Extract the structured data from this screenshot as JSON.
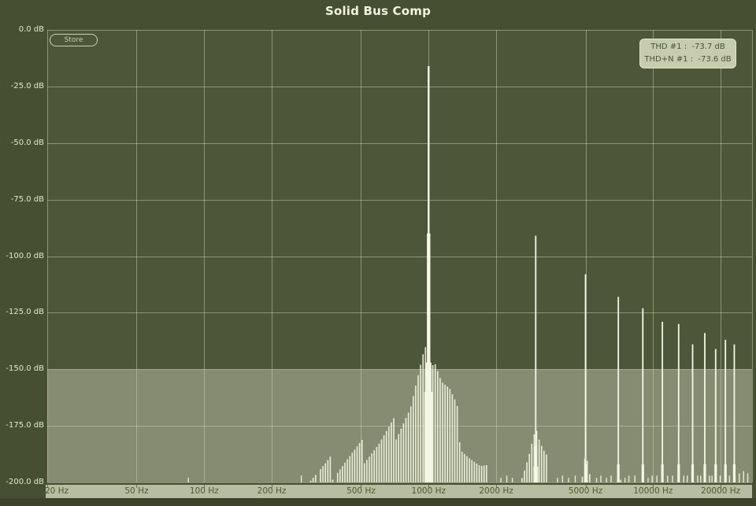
{
  "window": {
    "title": "Solid Bus Comp"
  },
  "controls": {
    "store_button": "Store"
  },
  "readout": {
    "line1": "THD #1 :  -73.7 dB",
    "line2": "THD+N #1 :  -73.6 dB"
  },
  "colors": {
    "background": "#474f33",
    "plot_background": "#4d5639",
    "bottom_band": "#3c432a",
    "grid": "#ccd3ae",
    "spectrum": "#f4f7e3",
    "noise_band_overlay": "#f2f6e2",
    "axis_strip": "#b7bda0",
    "axis_strip_text": "#4f5930",
    "y_label_text": "#e3e8ca",
    "readout_bg": "#c7ccaf",
    "readout_text": "#4a532e",
    "title_text": "#f1f5de"
  },
  "chart_data": {
    "type": "line",
    "subtype": "fft-harmonic-spectrum",
    "title": "Solid Bus Comp",
    "legend": "none",
    "grid": "on",
    "x_axis": {
      "scale": "log",
      "unit": "Hz",
      "range": [
        20,
        27600
      ],
      "ticks": [
        {
          "hz": 20,
          "label": "20 Hz"
        },
        {
          "hz": 50,
          "label": "50 Hz"
        },
        {
          "hz": 100,
          "label": "100 Hz"
        },
        {
          "hz": 200,
          "label": "200 Hz"
        },
        {
          "hz": 500,
          "label": "500 Hz"
        },
        {
          "hz": 1000,
          "label": "1000 Hz"
        },
        {
          "hz": 2000,
          "label": "2000 Hz"
        },
        {
          "hz": 5000,
          "label": "5000 Hz"
        },
        {
          "hz": 10000,
          "label": "10000 Hz"
        },
        {
          "hz": 20000,
          "label": "20000 Hz"
        }
      ]
    },
    "y_axis": {
      "unit": "dB",
      "range": [
        0,
        -200
      ],
      "ticks": [
        {
          "db": 0,
          "label": "0.0 dB"
        },
        {
          "db": -25,
          "label": "-25.0 dB"
        },
        {
          "db": -50,
          "label": "-50.0 dB"
        },
        {
          "db": -75,
          "label": "-75.0 dB"
        },
        {
          "db": -100,
          "label": "-100.0 dB"
        },
        {
          "db": -125,
          "label": "-125.0 dB"
        },
        {
          "db": -150,
          "label": "-150.0 dB"
        },
        {
          "db": -175,
          "label": "-175.0 dB"
        },
        {
          "db": -200,
          "label": "-200.0 dB"
        }
      ]
    },
    "noise_floor_band": {
      "from_db": -150,
      "to_db": -200
    },
    "fundamental_hz": 1000,
    "harmonic_peaks": [
      [
        1000,
        -16
      ],
      [
        3000,
        -91
      ],
      [
        5000,
        -108
      ],
      [
        7000,
        -118
      ],
      [
        9000,
        -123
      ],
      [
        11000,
        -129
      ],
      [
        13000,
        -130
      ],
      [
        15000,
        -139
      ],
      [
        17000,
        -134
      ],
      [
        19000,
        -141
      ],
      [
        21000,
        -137
      ],
      [
        23000,
        -139
      ]
    ],
    "skirt_envelopes": [
      [
        [
          270,
          -199
        ],
        [
          350,
          -195
        ],
        [
          430,
          -190
        ],
        [
          520,
          -186
        ],
        [
          600,
          -183
        ],
        [
          700,
          -177
        ],
        [
          830,
          -167
        ],
        [
          900,
          -155
        ],
        [
          950,
          -147
        ],
        [
          990,
          -144
        ],
        [
          1010,
          -144
        ],
        [
          1070,
          -145
        ],
        [
          1140,
          -155
        ],
        [
          1240,
          -161
        ],
        [
          1330,
          -170
        ],
        [
          1410,
          -182
        ],
        [
          1530,
          -188
        ],
        [
          1700,
          -195
        ],
        [
          1950,
          -199
        ]
      ],
      [
        [
          2480,
          -199
        ],
        [
          2650,
          -193
        ],
        [
          2800,
          -187
        ],
        [
          2900,
          -182
        ],
        [
          2970,
          -179
        ],
        [
          3030,
          -179
        ],
        [
          3110,
          -184
        ],
        [
          3220,
          -189
        ],
        [
          3380,
          -194
        ],
        [
          3620,
          -199
        ]
      ],
      [
        [
          4720,
          -199
        ],
        [
          4860,
          -192
        ],
        [
          4950,
          -186
        ],
        [
          5060,
          -186
        ],
        [
          5160,
          -192
        ],
        [
          5320,
          -199
        ]
      ],
      [
        [
          6820,
          -198
        ],
        [
          6950,
          -190
        ],
        [
          7060,
          -190
        ],
        [
          7230,
          -198
        ]
      ],
      [
        [
          8820,
          -198
        ],
        [
          8960,
          -191
        ],
        [
          9090,
          -191
        ],
        [
          9280,
          -198
        ]
      ],
      [
        [
          10750,
          -198
        ],
        [
          10930,
          -192
        ],
        [
          11090,
          -192
        ],
        [
          11300,
          -198
        ]
      ],
      [
        [
          12700,
          -198
        ],
        [
          12900,
          -192
        ],
        [
          13120,
          -192
        ],
        [
          13380,
          -198
        ]
      ],
      [
        [
          14650,
          -198
        ],
        [
          14880,
          -193
        ],
        [
          15140,
          -193
        ],
        [
          15420,
          -198
        ]
      ],
      [
        [
          16600,
          -198
        ],
        [
          16860,
          -193
        ],
        [
          17150,
          -193
        ],
        [
          17470,
          -198
        ]
      ],
      [
        [
          18600,
          -198
        ],
        [
          18870,
          -193
        ],
        [
          19160,
          -193
        ],
        [
          19500,
          -198
        ]
      ],
      [
        [
          20550,
          -198
        ],
        [
          20850,
          -193
        ],
        [
          21170,
          -193
        ],
        [
          21550,
          -198
        ]
      ],
      [
        [
          22500,
          -198
        ],
        [
          22830,
          -193
        ],
        [
          23180,
          -193
        ],
        [
          23600,
          -198
        ]
      ]
    ],
    "floor_spurs": [
      [
        85,
        -198
      ],
      [
        271,
        -197
      ],
      [
        2100,
        -198
      ],
      [
        2230,
        -197
      ],
      [
        2360,
        -198
      ],
      [
        3750,
        -198
      ],
      [
        3950,
        -197
      ],
      [
        4200,
        -198
      ],
      [
        4500,
        -197
      ],
      [
        5600,
        -198
      ],
      [
        5850,
        -197
      ],
      [
        6200,
        -198
      ],
      [
        6500,
        -197
      ],
      [
        7500,
        -198
      ],
      [
        7800,
        -197
      ],
      [
        8300,
        -197
      ],
      [
        9500,
        -198
      ],
      [
        9900,
        -197
      ],
      [
        10400,
        -197
      ],
      [
        11600,
        -197
      ],
      [
        12200,
        -197
      ],
      [
        13700,
        -197
      ],
      [
        14200,
        -197
      ],
      [
        15800,
        -197
      ],
      [
        16300,
        -197
      ],
      [
        17800,
        -197
      ],
      [
        18300,
        -197
      ],
      [
        19900,
        -197
      ],
      [
        21900,
        -197
      ],
      [
        24200,
        -196
      ],
      [
        25300,
        -195
      ],
      [
        26400,
        -196
      ]
    ],
    "measurements": {
      "thd_db": -73.7,
      "thd_n_db": -73.6
    }
  }
}
